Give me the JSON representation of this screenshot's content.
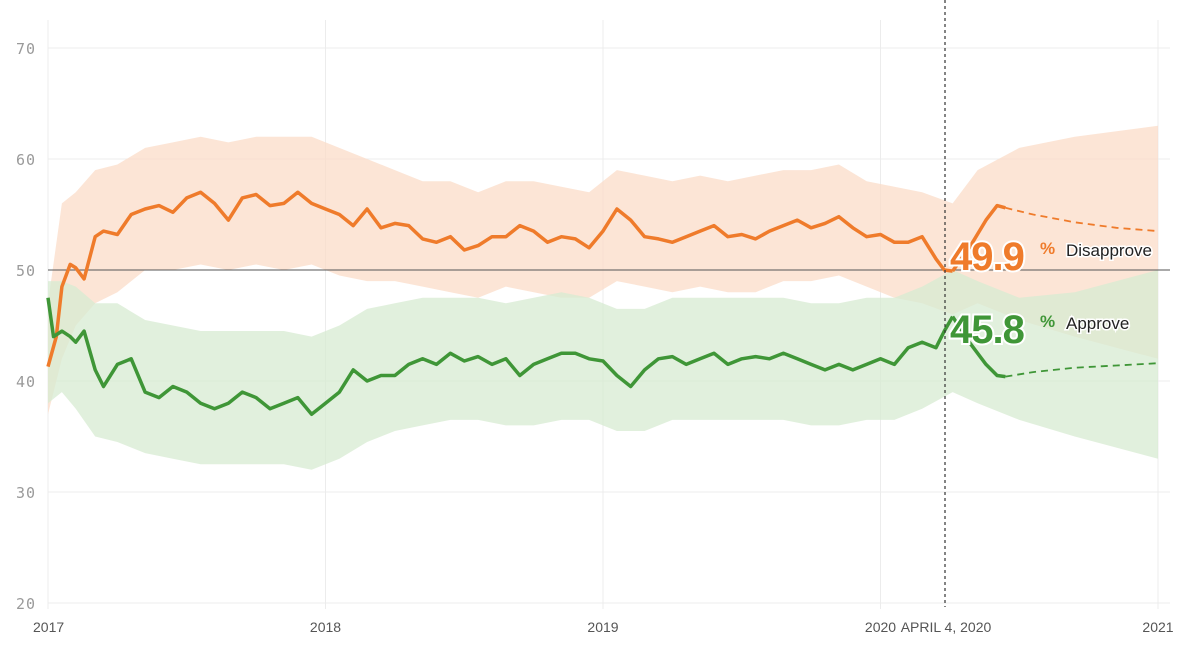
{
  "chart_data": {
    "type": "line",
    "title": "",
    "xlabel": "",
    "ylabel": "",
    "ylim": [
      20,
      70
    ],
    "yticks": [
      20,
      30,
      40,
      50,
      60,
      70
    ],
    "x_tick_labels": [
      "2017",
      "2018",
      "2019",
      "2020",
      "2021"
    ],
    "current_date_label": "APRIL 4, 2020",
    "reference_line": 50,
    "series": [
      {
        "name": "Disapprove",
        "label": "Disapprove",
        "color": "#ef7b2b",
        "band_color": "#fbdcc8",
        "current_value": "49.9",
        "value_suffix": "%",
        "points": [
          [
            2017.0,
            41.3
          ],
          [
            2017.03,
            44.0
          ],
          [
            2017.05,
            48.5
          ],
          [
            2017.08,
            50.5
          ],
          [
            2017.1,
            50.2
          ],
          [
            2017.13,
            49.2
          ],
          [
            2017.17,
            53.0
          ],
          [
            2017.2,
            53.5
          ],
          [
            2017.25,
            53.2
          ],
          [
            2017.3,
            55.0
          ],
          [
            2017.35,
            55.5
          ],
          [
            2017.4,
            55.8
          ],
          [
            2017.45,
            55.2
          ],
          [
            2017.5,
            56.5
          ],
          [
            2017.55,
            57.0
          ],
          [
            2017.6,
            56.0
          ],
          [
            2017.65,
            54.5
          ],
          [
            2017.7,
            56.5
          ],
          [
            2017.75,
            56.8
          ],
          [
            2017.8,
            55.8
          ],
          [
            2017.85,
            56.0
          ],
          [
            2017.9,
            57.0
          ],
          [
            2017.95,
            56.0
          ],
          [
            2018.0,
            55.5
          ],
          [
            2018.05,
            55.0
          ],
          [
            2018.1,
            54.0
          ],
          [
            2018.15,
            55.5
          ],
          [
            2018.2,
            53.8
          ],
          [
            2018.25,
            54.2
          ],
          [
            2018.3,
            54.0
          ],
          [
            2018.35,
            52.8
          ],
          [
            2018.4,
            52.5
          ],
          [
            2018.45,
            53.0
          ],
          [
            2018.5,
            51.8
          ],
          [
            2018.55,
            52.2
          ],
          [
            2018.6,
            53.0
          ],
          [
            2018.65,
            53.0
          ],
          [
            2018.7,
            54.0
          ],
          [
            2018.75,
            53.5
          ],
          [
            2018.8,
            52.5
          ],
          [
            2018.85,
            53.0
          ],
          [
            2018.9,
            52.8
          ],
          [
            2018.95,
            52.0
          ],
          [
            2019.0,
            53.5
          ],
          [
            2019.05,
            55.5
          ],
          [
            2019.1,
            54.5
          ],
          [
            2019.15,
            53.0
          ],
          [
            2019.2,
            52.8
          ],
          [
            2019.25,
            52.5
          ],
          [
            2019.3,
            53.0
          ],
          [
            2019.35,
            53.5
          ],
          [
            2019.4,
            54.0
          ],
          [
            2019.45,
            53.0
          ],
          [
            2019.5,
            53.2
          ],
          [
            2019.55,
            52.8
          ],
          [
            2019.6,
            53.5
          ],
          [
            2019.65,
            54.0
          ],
          [
            2019.7,
            54.5
          ],
          [
            2019.75,
            53.8
          ],
          [
            2019.8,
            54.2
          ],
          [
            2019.85,
            54.8
          ],
          [
            2019.9,
            53.8
          ],
          [
            2019.95,
            53.0
          ],
          [
            2020.0,
            53.2
          ],
          [
            2020.05,
            52.5
          ],
          [
            2020.1,
            52.5
          ],
          [
            2020.15,
            53.0
          ],
          [
            2020.2,
            51.0
          ],
          [
            2020.23,
            50.0
          ],
          [
            2020.26,
            49.9
          ]
        ],
        "projection": [
          [
            2020.26,
            49.9
          ],
          [
            2020.32,
            52.0
          ],
          [
            2020.38,
            54.5
          ],
          [
            2020.42,
            55.8
          ],
          [
            2020.45,
            55.6
          ],
          [
            2020.55,
            55.0
          ],
          [
            2020.7,
            54.3
          ],
          [
            2020.85,
            53.8
          ],
          [
            2021.0,
            53.5
          ]
        ],
        "projection_dashed_from": 2020.45,
        "band": [
          [
            2017.0,
            37.0,
            47.0
          ],
          [
            2017.05,
            42.0,
            56.0
          ],
          [
            2017.1,
            45.0,
            57.0
          ],
          [
            2017.17,
            47.0,
            59.0
          ],
          [
            2017.25,
            48.0,
            59.5
          ],
          [
            2017.35,
            50.0,
            61.0
          ],
          [
            2017.45,
            50.0,
            61.5
          ],
          [
            2017.55,
            50.5,
            62.0
          ],
          [
            2017.65,
            50.0,
            61.5
          ],
          [
            2017.75,
            50.5,
            62.0
          ],
          [
            2017.85,
            50.0,
            62.0
          ],
          [
            2017.95,
            50.5,
            62.0
          ],
          [
            2018.05,
            49.5,
            61.0
          ],
          [
            2018.15,
            49.0,
            60.0
          ],
          [
            2018.25,
            49.0,
            59.0
          ],
          [
            2018.35,
            48.5,
            58.0
          ],
          [
            2018.45,
            48.0,
            58.0
          ],
          [
            2018.55,
            47.5,
            57.0
          ],
          [
            2018.65,
            48.5,
            58.0
          ],
          [
            2018.75,
            48.0,
            58.0
          ],
          [
            2018.85,
            47.5,
            57.5
          ],
          [
            2018.95,
            47.5,
            57.0
          ],
          [
            2019.05,
            49.0,
            59.0
          ],
          [
            2019.15,
            48.5,
            58.5
          ],
          [
            2019.25,
            48.0,
            58.0
          ],
          [
            2019.35,
            48.5,
            58.5
          ],
          [
            2019.45,
            48.0,
            58.0
          ],
          [
            2019.55,
            48.0,
            58.5
          ],
          [
            2019.65,
            49.0,
            59.0
          ],
          [
            2019.75,
            49.0,
            59.0
          ],
          [
            2019.85,
            49.5,
            59.5
          ],
          [
            2019.95,
            48.5,
            58.0
          ],
          [
            2020.05,
            47.5,
            57.5
          ],
          [
            2020.15,
            47.0,
            57.0
          ],
          [
            2020.26,
            46.0,
            56.0
          ],
          [
            2020.35,
            47.0,
            59.0
          ],
          [
            2020.5,
            45.5,
            61.0
          ],
          [
            2020.7,
            44.0,
            62.0
          ],
          [
            2020.85,
            43.0,
            62.5
          ],
          [
            2021.0,
            42.0,
            63.0
          ]
        ]
      },
      {
        "name": "Approve",
        "label": "Approve",
        "color": "#3f9637",
        "band_color": "#d7ebd2",
        "current_value": "45.8",
        "value_suffix": "%",
        "points": [
          [
            2017.0,
            47.5
          ],
          [
            2017.02,
            44.0
          ],
          [
            2017.05,
            44.5
          ],
          [
            2017.08,
            44.0
          ],
          [
            2017.1,
            43.5
          ],
          [
            2017.13,
            44.5
          ],
          [
            2017.17,
            41.0
          ],
          [
            2017.2,
            39.5
          ],
          [
            2017.25,
            41.5
          ],
          [
            2017.3,
            42.0
          ],
          [
            2017.35,
            39.0
          ],
          [
            2017.4,
            38.5
          ],
          [
            2017.45,
            39.5
          ],
          [
            2017.5,
            39.0
          ],
          [
            2017.55,
            38.0
          ],
          [
            2017.6,
            37.5
          ],
          [
            2017.65,
            38.0
          ],
          [
            2017.7,
            39.0
          ],
          [
            2017.75,
            38.5
          ],
          [
            2017.8,
            37.5
          ],
          [
            2017.85,
            38.0
          ],
          [
            2017.9,
            38.5
          ],
          [
            2017.95,
            37.0
          ],
          [
            2018.0,
            38.0
          ],
          [
            2018.05,
            39.0
          ],
          [
            2018.1,
            41.0
          ],
          [
            2018.15,
            40.0
          ],
          [
            2018.2,
            40.5
          ],
          [
            2018.25,
            40.5
          ],
          [
            2018.3,
            41.5
          ],
          [
            2018.35,
            42.0
          ],
          [
            2018.4,
            41.5
          ],
          [
            2018.45,
            42.5
          ],
          [
            2018.5,
            41.8
          ],
          [
            2018.55,
            42.2
          ],
          [
            2018.6,
            41.5
          ],
          [
            2018.65,
            42.0
          ],
          [
            2018.7,
            40.5
          ],
          [
            2018.75,
            41.5
          ],
          [
            2018.8,
            42.0
          ],
          [
            2018.85,
            42.5
          ],
          [
            2018.9,
            42.5
          ],
          [
            2018.95,
            42.0
          ],
          [
            2019.0,
            41.8
          ],
          [
            2019.05,
            40.5
          ],
          [
            2019.1,
            39.5
          ],
          [
            2019.15,
            41.0
          ],
          [
            2019.2,
            42.0
          ],
          [
            2019.25,
            42.2
          ],
          [
            2019.3,
            41.5
          ],
          [
            2019.35,
            42.0
          ],
          [
            2019.4,
            42.5
          ],
          [
            2019.45,
            41.5
          ],
          [
            2019.5,
            42.0
          ],
          [
            2019.55,
            42.2
          ],
          [
            2019.6,
            42.0
          ],
          [
            2019.65,
            42.5
          ],
          [
            2019.7,
            42.0
          ],
          [
            2019.75,
            41.5
          ],
          [
            2019.8,
            41.0
          ],
          [
            2019.85,
            41.5
          ],
          [
            2019.9,
            41.0
          ],
          [
            2019.95,
            41.5
          ],
          [
            2020.0,
            42.0
          ],
          [
            2020.05,
            41.5
          ],
          [
            2020.1,
            43.0
          ],
          [
            2020.15,
            43.5
          ],
          [
            2020.2,
            43.0
          ],
          [
            2020.23,
            44.5
          ],
          [
            2020.26,
            45.8
          ]
        ],
        "projection": [
          [
            2020.26,
            45.8
          ],
          [
            2020.32,
            43.5
          ],
          [
            2020.38,
            41.5
          ],
          [
            2020.42,
            40.5
          ],
          [
            2020.45,
            40.4
          ],
          [
            2020.55,
            40.8
          ],
          [
            2020.7,
            41.2
          ],
          [
            2020.85,
            41.4
          ],
          [
            2021.0,
            41.6
          ]
        ],
        "projection_dashed_from": 2020.45,
        "band": [
          [
            2017.0,
            38.0,
            49.0
          ],
          [
            2017.05,
            39.0,
            49.0
          ],
          [
            2017.1,
            37.5,
            48.5
          ],
          [
            2017.17,
            35.0,
            47.0
          ],
          [
            2017.25,
            34.5,
            47.0
          ],
          [
            2017.35,
            33.5,
            45.5
          ],
          [
            2017.45,
            33.0,
            45.0
          ],
          [
            2017.55,
            32.5,
            44.5
          ],
          [
            2017.65,
            32.5,
            44.5
          ],
          [
            2017.75,
            32.5,
            44.5
          ],
          [
            2017.85,
            32.5,
            44.5
          ],
          [
            2017.95,
            32.0,
            44.0
          ],
          [
            2018.05,
            33.0,
            45.0
          ],
          [
            2018.15,
            34.5,
            46.5
          ],
          [
            2018.25,
            35.5,
            47.0
          ],
          [
            2018.35,
            36.0,
            47.5
          ],
          [
            2018.45,
            36.5,
            47.5
          ],
          [
            2018.55,
            36.5,
            47.5
          ],
          [
            2018.65,
            36.0,
            47.0
          ],
          [
            2018.75,
            36.0,
            47.5
          ],
          [
            2018.85,
            36.5,
            48.0
          ],
          [
            2018.95,
            36.5,
            47.5
          ],
          [
            2019.05,
            35.5,
            46.5
          ],
          [
            2019.15,
            35.5,
            46.5
          ],
          [
            2019.25,
            36.5,
            47.5
          ],
          [
            2019.35,
            36.5,
            47.5
          ],
          [
            2019.45,
            36.5,
            47.5
          ],
          [
            2019.55,
            36.5,
            47.5
          ],
          [
            2019.65,
            36.5,
            47.5
          ],
          [
            2019.75,
            36.0,
            47.0
          ],
          [
            2019.85,
            36.0,
            47.0
          ],
          [
            2019.95,
            36.5,
            47.5
          ],
          [
            2020.05,
            36.5,
            47.5
          ],
          [
            2020.15,
            37.5,
            48.5
          ],
          [
            2020.26,
            39.0,
            50.0
          ],
          [
            2020.35,
            38.0,
            49.0
          ],
          [
            2020.5,
            36.5,
            47.5
          ],
          [
            2020.7,
            35.0,
            48.0
          ],
          [
            2020.85,
            34.0,
            49.0
          ],
          [
            2021.0,
            33.0,
            50.0
          ]
        ]
      }
    ]
  }
}
